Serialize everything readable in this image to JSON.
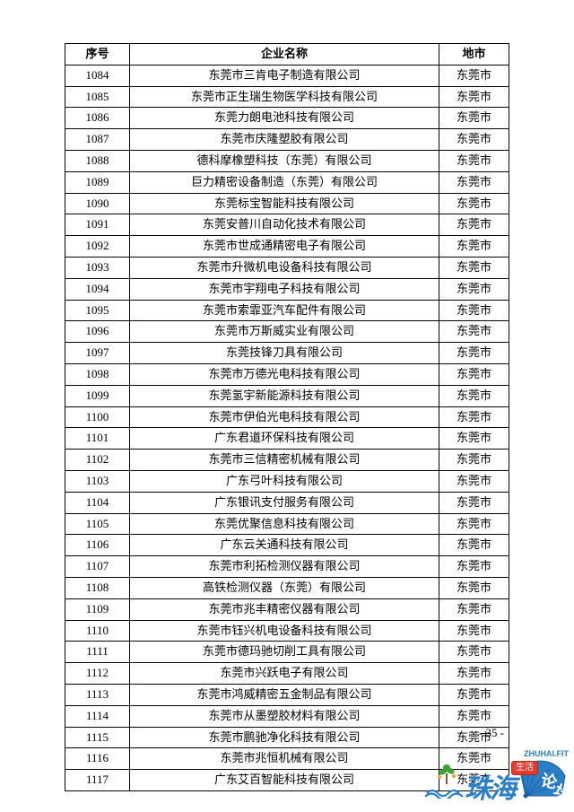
{
  "table": {
    "headers": {
      "seq": "序号",
      "name": "企业名称",
      "city": "地市"
    },
    "rows": [
      {
        "seq": "1084",
        "name": "东莞市三肯电子制造有限公司",
        "city": "东莞市"
      },
      {
        "seq": "1085",
        "name": "东莞市正生瑞生物医学科技有限公司",
        "city": "东莞市"
      },
      {
        "seq": "1086",
        "name": "东莞力朗电池科技有限公司",
        "city": "东莞市"
      },
      {
        "seq": "1087",
        "name": "东莞市庆隆塑胶有限公司",
        "city": "东莞市"
      },
      {
        "seq": "1088",
        "name": "德科摩橡塑科技（东莞）有限公司",
        "city": "东莞市"
      },
      {
        "seq": "1089",
        "name": "巨力精密设备制造（东莞）有限公司",
        "city": "东莞市"
      },
      {
        "seq": "1090",
        "name": "东莞标宝智能科技有限公司",
        "city": "东莞市"
      },
      {
        "seq": "1091",
        "name": "东莞安普川自动化技术有限公司",
        "city": "东莞市"
      },
      {
        "seq": "1092",
        "name": "东莞市世成通精密电子有限公司",
        "city": "东莞市"
      },
      {
        "seq": "1093",
        "name": "东莞市升微机电设备科技有限公司",
        "city": "东莞市"
      },
      {
        "seq": "1094",
        "name": "东莞市宇翔电子科技有限公司",
        "city": "东莞市"
      },
      {
        "seq": "1095",
        "name": "东莞市索霏亚汽车配件有限公司",
        "city": "东莞市"
      },
      {
        "seq": "1096",
        "name": "东莞市万斯威实业有限公司",
        "city": "东莞市"
      },
      {
        "seq": "1097",
        "name": "东莞技锋刀具有限公司",
        "city": "东莞市"
      },
      {
        "seq": "1098",
        "name": "东莞市万德光电科技有限公司",
        "city": "东莞市"
      },
      {
        "seq": "1099",
        "name": "东莞氢宇新能源科技有限公司",
        "city": "东莞市"
      },
      {
        "seq": "1100",
        "name": "东莞市伊伯光电科技有限公司",
        "city": "东莞市"
      },
      {
        "seq": "1101",
        "name": "广东君道环保科技有限公司",
        "city": "东莞市"
      },
      {
        "seq": "1102",
        "name": "东莞市三信精密机械有限公司",
        "city": "东莞市"
      },
      {
        "seq": "1103",
        "name": "广东弓叶科技有限公司",
        "city": "东莞市"
      },
      {
        "seq": "1104",
        "name": "广东银讯支付服务有限公司",
        "city": "东莞市"
      },
      {
        "seq": "1105",
        "name": "东莞优聚信息科技有限公司",
        "city": "东莞市"
      },
      {
        "seq": "1106",
        "name": "广东云关通科技有限公司",
        "city": "东莞市"
      },
      {
        "seq": "1107",
        "name": "东莞市利拓检测仪器有限公司",
        "city": "东莞市"
      },
      {
        "seq": "1108",
        "name": "高铁检测仪器（东莞）有限公司",
        "city": "东莞市"
      },
      {
        "seq": "1109",
        "name": "东莞市兆丰精密仪器有限公司",
        "city": "东莞市"
      },
      {
        "seq": "1110",
        "name": "东莞市钰兴机电设备科技有限公司",
        "city": "东莞市"
      },
      {
        "seq": "1111",
        "name": "东莞市德玛驰切削工具有限公司",
        "city": "东莞市"
      },
      {
        "seq": "1112",
        "name": "东莞市兴跃电子有限公司",
        "city": "东莞市"
      },
      {
        "seq": "1113",
        "name": "东莞市鸿威精密五金制品有限公司",
        "city": "东莞市"
      },
      {
        "seq": "1114",
        "name": "东莞市从墨塑胶材料有限公司",
        "city": "东莞市"
      },
      {
        "seq": "1115",
        "name": "东莞市鹏驰净化科技有限公司",
        "city": "东莞市"
      },
      {
        "seq": "1116",
        "name": "东莞市兆恒机械有限公司",
        "city": "东莞市"
      },
      {
        "seq": "1117",
        "name": "广东艾百智能科技有限公司",
        "city": "东莞市"
      }
    ]
  },
  "page_number": "- 35 -",
  "watermark": {
    "chars": "珠海",
    "badge": "生活",
    "url": "ZHUHAI.FIT",
    "forum": "论坛",
    "colors": {
      "blue": "#2a7fc9",
      "red": "#e33b2e",
      "green": "#3aa338",
      "orange": "#f2a12e"
    }
  }
}
